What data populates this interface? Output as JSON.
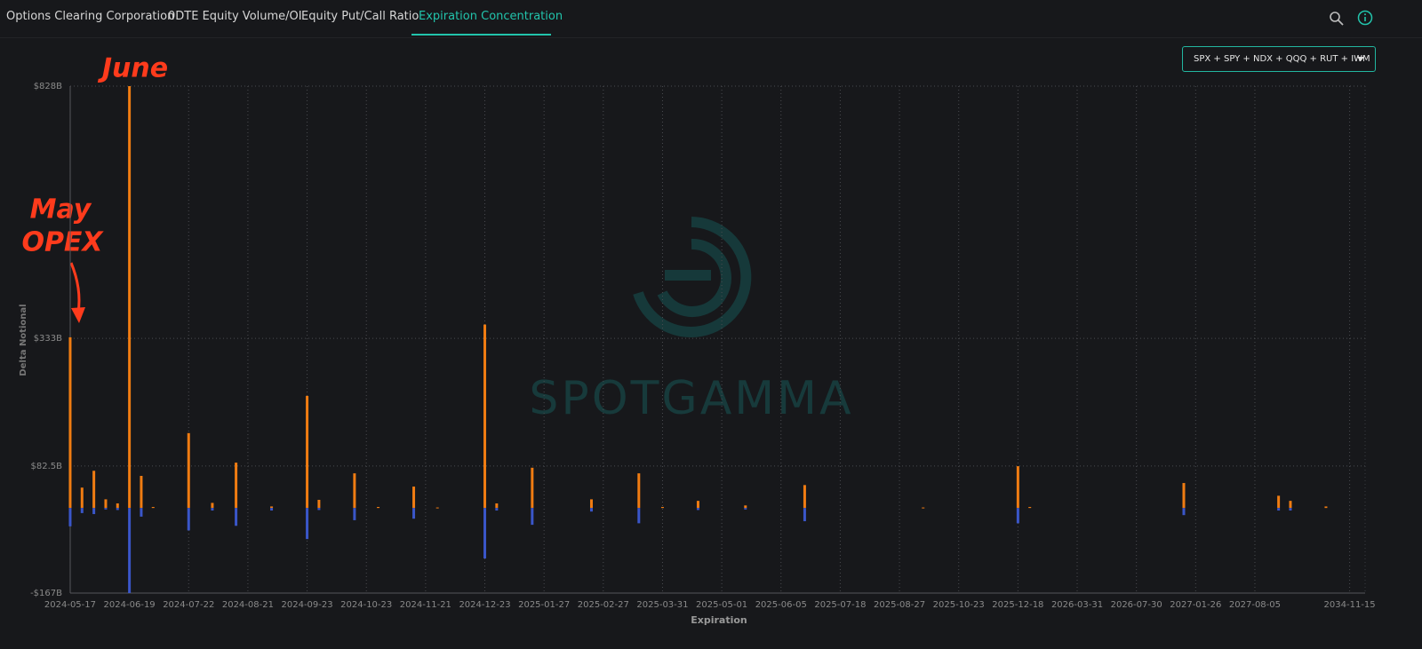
{
  "tabs": [
    "Options Clearing Corporation",
    "0DTE Equity Volume/OI",
    "Equity Put/Call Ratio",
    "Expiration Concentration"
  ],
  "dropdown": "SPX + SPY + NDX + QQQ + RUT + IWM",
  "watermark": "SPOTGAMMA",
  "chart_data": {
    "type": "bar",
    "annotations": [
      "June",
      "May",
      "OPEX"
    ],
    "x_label": "Expiration",
    "y_label": "Delta Notional",
    "ylim": [
      -167,
      828
    ],
    "yticks": [
      {
        "value": -167,
        "label": "-$167B"
      },
      {
        "value": 82.5,
        "label": "$82.5B"
      },
      {
        "value": 333,
        "label": "$333B"
      },
      {
        "value": 828,
        "label": "$828B"
      }
    ],
    "grid": true,
    "categories": [
      "2024-05-17",
      null,
      null,
      null,
      null,
      "2024-06-19",
      null,
      null,
      null,
      null,
      "2024-07-22",
      null,
      null,
      null,
      null,
      "2024-08-21",
      null,
      null,
      null,
      null,
      "2024-09-23",
      null,
      null,
      null,
      null,
      "2024-10-23",
      null,
      null,
      null,
      null,
      "2024-11-21",
      null,
      null,
      null,
      null,
      "2024-12-23",
      null,
      null,
      null,
      null,
      "2025-01-27",
      null,
      null,
      null,
      null,
      "2025-02-27",
      null,
      null,
      null,
      null,
      "2025-03-31",
      null,
      null,
      null,
      null,
      "2025-05-01",
      null,
      null,
      null,
      null,
      "2025-06-05",
      null,
      null,
      null,
      null,
      "2025-07-18",
      null,
      null,
      null,
      null,
      "2025-08-27",
      null,
      null,
      null,
      null,
      "2025-10-23",
      null,
      null,
      null,
      null,
      "2025-12-18",
      null,
      null,
      null,
      null,
      "2026-03-31",
      null,
      null,
      null,
      null,
      "2026-07-30",
      null,
      null,
      null,
      null,
      "2027-01-26",
      null,
      null,
      null,
      null,
      "2027-08-05",
      null,
      null,
      null,
      null,
      null,
      null,
      null,
      "2034-11-15",
      null
    ],
    "series": [
      {
        "color": "#f07c12",
        "values": [
          335,
          40,
          73,
          17,
          9,
          828,
          63,
          2,
          null,
          null,
          147,
          null,
          10,
          null,
          89,
          null,
          null,
          3,
          null,
          null,
          220,
          16,
          null,
          null,
          68,
          null,
          2,
          null,
          null,
          42,
          null,
          1,
          null,
          null,
          null,
          360,
          9,
          null,
          null,
          79,
          null,
          null,
          null,
          null,
          17,
          null,
          null,
          null,
          68,
          null,
          2,
          null,
          null,
          14,
          null,
          null,
          null,
          5,
          null,
          null,
          null,
          null,
          45,
          null,
          null,
          null,
          null,
          null,
          null,
          null,
          null,
          null,
          1,
          null,
          null,
          null,
          null,
          null,
          null,
          null,
          82,
          2,
          null,
          null,
          null,
          null,
          null,
          null,
          null,
          null,
          null,
          null,
          null,
          null,
          49,
          null,
          null,
          null,
          null,
          null,
          null,
          null,
          24,
          14,
          null,
          null,
          3,
          null,
          null,
          null
        ]
      },
      {
        "color": "#3a56c9",
        "values": [
          -36,
          -10,
          -12,
          -3,
          -4,
          -167,
          -17,
          null,
          null,
          null,
          -44,
          null,
          -5,
          null,
          -35,
          null,
          null,
          -5,
          null,
          null,
          -61,
          -4,
          null,
          null,
          -24,
          null,
          null,
          null,
          null,
          -21,
          null,
          null,
          null,
          null,
          null,
          -99,
          -5,
          null,
          null,
          -33,
          null,
          null,
          null,
          null,
          -7,
          null,
          null,
          null,
          -30,
          null,
          null,
          null,
          null,
          -4,
          null,
          null,
          null,
          -3,
          null,
          null,
          null,
          null,
          -26,
          null,
          null,
          null,
          null,
          null,
          null,
          null,
          null,
          null,
          null,
          null,
          null,
          null,
          null,
          null,
          null,
          null,
          -30,
          null,
          null,
          null,
          null,
          null,
          null,
          null,
          null,
          null,
          null,
          null,
          null,
          null,
          -14,
          null,
          null,
          null,
          null,
          null,
          null,
          null,
          -5,
          -5,
          null,
          null,
          null,
          null,
          null,
          null
        ]
      }
    ]
  }
}
